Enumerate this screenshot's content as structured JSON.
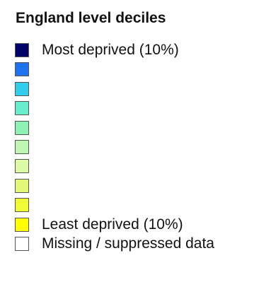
{
  "legend": {
    "title": "England level deciles",
    "items": [
      {
        "label": "Most deprived (10%)",
        "color": "#000066"
      },
      {
        "label": "",
        "color": "#1f72ee"
      },
      {
        "label": "",
        "color": "#33ccee"
      },
      {
        "label": "",
        "color": "#66eecc"
      },
      {
        "label": "",
        "color": "#8ff0b3"
      },
      {
        "label": "",
        "color": "#bef5b2"
      },
      {
        "label": "",
        "color": "#ddfaa6"
      },
      {
        "label": "",
        "color": "#e6f87a"
      },
      {
        "label": "",
        "color": "#f0fb36"
      },
      {
        "label": "Least deprived (10%)",
        "color": "#ffff00"
      },
      {
        "label": "Missing / suppressed data",
        "color": "#ffffff"
      }
    ]
  }
}
